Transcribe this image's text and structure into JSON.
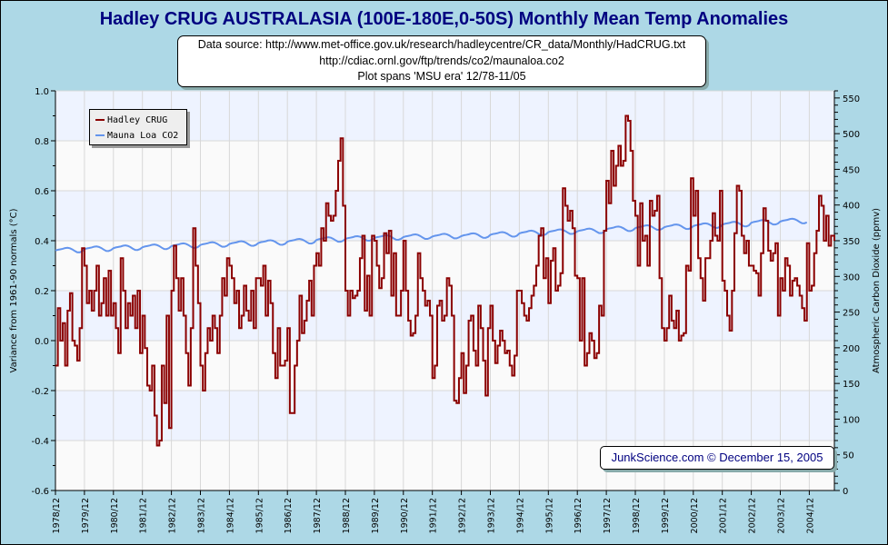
{
  "chart_data": {
    "type": "line",
    "title": "Hadley CRUG AUSTRALASIA (100E-180E,0-50S) Monthly Mean Temp Anomalies",
    "subtitle_lines": [
      "Data source: http://www.met-office.gov.uk/research/hadleycentre/CR_data/Monthly/HadCRUG.txt",
      "http://cdiac.ornl.gov/ftp/trends/co2/maunaloa.co2",
      "Plot spans 'MSU era' 12/78-11/05"
    ],
    "footer": "JunkScience.com © December 15, 2005",
    "ylabel": "Variance from 1961-90 normals (°C)",
    "y2label": "Atmospheric Carbon Dioxide (ppmv)",
    "ylim": [
      -0.6,
      1.0
    ],
    "y2lim": [
      0,
      560
    ],
    "yticks": [
      "1.0",
      "0.8",
      "0.6",
      "0.4",
      "0.2",
      "0.0",
      "-0.2",
      "-0.4",
      "-0.6"
    ],
    "y2ticks": [
      "550",
      "500",
      "450",
      "400",
      "350",
      "300",
      "250",
      "200",
      "150",
      "100",
      "50",
      "0"
    ],
    "xticks": [
      "1978/12",
      "1979/12",
      "1980/12",
      "1981/12",
      "1982/12",
      "1983/12",
      "1984/12",
      "1985/12",
      "1986/12",
      "1987/12",
      "1988/12",
      "1989/12",
      "1990/12",
      "1991/12",
      "1992/12",
      "1993/12",
      "1994/12",
      "1995/12",
      "1996/12",
      "1997/12",
      "1998/12",
      "1999/12",
      "2000/12",
      "2001/12",
      "2002/12",
      "2003/12",
      "2004/12"
    ],
    "grid": true,
    "legend_position": "top-left",
    "start_month": "1978/12",
    "series": [
      {
        "name": "Hadley CRUG",
        "color": "#8B0000",
        "axis": "left",
        "monthly_by_year": [
          [
            -0.1,
            0.13,
            0.0,
            0.07,
            -0.1,
            0.12,
            0.19,
            0.0,
            -0.02,
            -0.08,
            0.05,
            0.37
          ],
          [
            0.3,
            0.15,
            0.2,
            0.12,
            0.2,
            0.3,
            0.1,
            0.15,
            0.25,
            0.1,
            0.28,
            0.1
          ],
          [
            0.15,
            0.05,
            -0.05,
            0.33,
            0.2,
            0.05,
            0.15,
            0.1,
            0.18,
            0.05,
            0.2,
            -0.05
          ],
          [
            0.1,
            -0.03,
            -0.18,
            -0.2,
            -0.1,
            -0.3,
            -0.42,
            -0.4,
            -0.1,
            -0.25,
            0.1,
            -0.35
          ],
          [
            0.2,
            0.38,
            0.25,
            0.12,
            0.25,
            0.1,
            -0.05,
            -0.18,
            0.05,
            0.45,
            0.3,
            0.15
          ],
          [
            -0.1,
            -0.2,
            -0.05,
            0.05,
            0.0,
            0.1,
            0.05,
            -0.05,
            0.1,
            0.25,
            0.18,
            0.33
          ],
          [
            0.3,
            0.25,
            0.15,
            0.2,
            0.05,
            0.1,
            0.22,
            0.12,
            0.08,
            0.2,
            0.05,
            0.25
          ],
          [
            0.25,
            0.22,
            0.3,
            0.1,
            0.24,
            0.15,
            -0.05,
            -0.15,
            0.05,
            -0.1,
            -0.1,
            -0.08
          ],
          [
            0.05,
            -0.29,
            -0.29,
            -0.1,
            0.0,
            0.18,
            0.03,
            0.08,
            0.16,
            0.24,
            0.1,
            0.3
          ],
          [
            0.35,
            0.3,
            0.45,
            0.4,
            0.55,
            0.5,
            0.48,
            0.5,
            0.6,
            0.72,
            0.81,
            0.54
          ],
          [
            0.2,
            0.1,
            0.2,
            0.17,
            0.18,
            0.2,
            0.33,
            0.42,
            0.12,
            0.26,
            0.1,
            0.42
          ],
          [
            0.4,
            0.3,
            0.21,
            0.25,
            0.43,
            0.35,
            0.44,
            0.18,
            0.35,
            0.1,
            0.1,
            0.2
          ],
          [
            0.4,
            0.2,
            0.08,
            0.02,
            0.03,
            0.1,
            0.35,
            0.25,
            0.2,
            0.14,
            0.16,
            0.1
          ],
          [
            -0.15,
            -0.1,
            0.14,
            0.16,
            0.08,
            0.1,
            0.25,
            0.22,
            0.1,
            -0.24,
            -0.25,
            -0.15
          ],
          [
            -0.05,
            -0.21,
            -0.1,
            0.08,
            0.1,
            -0.04,
            -0.1,
            0.14,
            0.05,
            -0.08,
            -0.22,
            0.05
          ],
          [
            0.14,
            0.0,
            -0.09,
            -0.02,
            0.04,
            0.0,
            -0.05,
            -0.04,
            -0.1,
            -0.14,
            -0.06,
            0.2
          ],
          [
            0.2,
            0.15,
            0.1,
            0.08,
            0.13,
            0.18,
            0.22,
            0.3,
            0.42,
            0.45,
            0.25,
            0.33
          ],
          [
            0.15,
            0.32,
            0.37,
            0.2,
            0.22,
            0.27,
            0.61,
            0.54,
            0.48,
            0.52,
            0.45,
            0.26
          ],
          [
            0.25,
            0.0,
            0.25,
            -0.1,
            -0.05,
            0.03,
            0.0,
            -0.07,
            -0.05,
            0.14,
            0.1,
            0.44
          ],
          [
            0.64,
            0.55,
            0.76,
            0.62,
            0.7,
            0.78,
            0.7,
            0.72,
            0.9,
            0.88,
            0.76,
            0.56
          ],
          [
            0.5,
            0.3,
            0.55,
            0.4,
            0.42,
            0.3,
            0.56,
            0.5,
            0.52,
            0.58,
            0.25,
            0.05
          ],
          [
            0.0,
            0.05,
            0.18,
            0.08,
            0.05,
            0.12,
            0.0,
            0.02,
            0.03,
            0.3,
            0.28,
            0.65
          ],
          [
            0.5,
            0.6,
            0.33,
            0.25,
            0.16,
            0.33,
            0.33,
            0.4,
            0.51,
            0.42,
            0.4,
            0.6
          ],
          [
            0.24,
            0.2,
            0.1,
            0.04,
            0.2,
            0.43,
            0.62,
            0.6,
            0.42,
            0.35,
            0.4,
            0.3
          ],
          [
            0.3,
            0.28,
            0.27,
            0.18,
            0.35,
            0.53,
            0.48,
            0.36,
            0.32,
            0.35,
            0.39,
            0.1
          ],
          [
            0.25,
            0.2,
            0.33,
            0.3,
            0.18,
            0.24,
            0.25,
            0.22,
            0.18,
            0.13,
            0.08,
            0.39
          ],
          [
            0.2,
            0.22,
            0.35,
            0.44,
            0.58,
            0.54,
            0.4,
            0.5,
            0.38,
            0.42,
            0.42,
            0.4
          ]
        ]
      },
      {
        "name": "Mauna Loa CO2",
        "color": "#6495ED",
        "axis": "right",
        "annual_means": [
          336.8,
          338.7,
          340.1,
          341.4,
          343.0,
          344.6,
          346.0,
          347.4,
          349.2,
          351.6,
          353.1,
          354.4,
          355.6,
          356.4,
          357.1,
          358.8,
          360.8,
          362.6,
          363.7,
          366.6,
          368.3,
          369.5,
          371.1,
          373.2,
          375.8,
          377.5
        ],
        "seasonal_offsets_dec_to_nov": [
          -0.6,
          0.5,
          1.1,
          1.8,
          2.9,
          3.3,
          2.6,
          1.0,
          -1.2,
          -3.0,
          -3.1,
          -1.8
        ]
      }
    ]
  }
}
